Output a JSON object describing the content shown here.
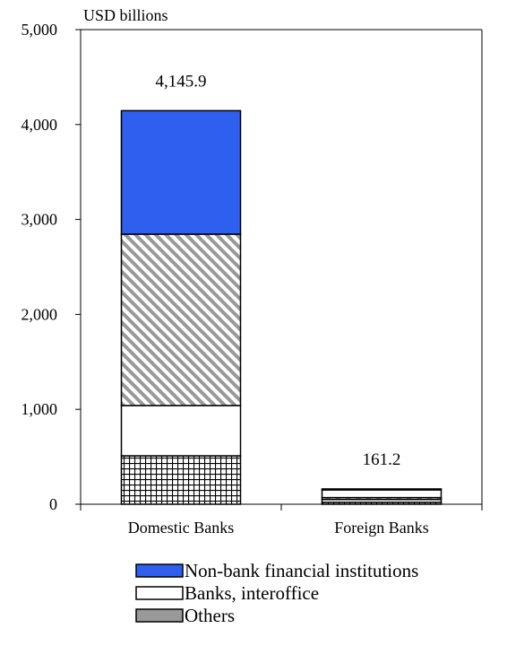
{
  "chart_data": {
    "type": "bar",
    "stacked": true,
    "unit_label": "USD billions",
    "ylim": [
      0,
      5000
    ],
    "yticks": [
      0,
      1000,
      2000,
      3000,
      4000,
      5000
    ],
    "ytick_labels": [
      "0",
      "1,000",
      "2,000",
      "3,000",
      "4,000",
      "5,000"
    ],
    "categories": [
      "Domestic Banks",
      "Foreign Banks"
    ],
    "totals": [
      4145.9,
      161.2
    ],
    "total_labels": [
      "4,145.9",
      "161.2"
    ],
    "series": [
      {
        "key": "crosshatch",
        "values": [
          510,
          20
        ],
        "color": "#000000",
        "pattern": "grid"
      },
      {
        "key": "white_lower",
        "values": [
          530,
          30
        ],
        "color": "#ffffff",
        "pattern": "none"
      },
      {
        "key": "diagonal",
        "values": [
          1805,
          20
        ],
        "color": "#999999",
        "pattern": "diagonal"
      },
      {
        "name": "Banks, interoffice",
        "values": [
          0,
          81.2
        ],
        "color": "#ffffff",
        "pattern": "none"
      },
      {
        "name": "Non-bank financial institutions",
        "values": [
          1300.9,
          10
        ],
        "color": "#2f5fef",
        "pattern": "none"
      }
    ],
    "legend": [
      {
        "label": "Non-bank financial institutions",
        "color": "#2f5fef"
      },
      {
        "label": "Banks, interoffice",
        "color": "#ffffff"
      },
      {
        "label": "Others",
        "color": "#999999"
      }
    ],
    "grid": false,
    "legend_position": "bottom"
  }
}
